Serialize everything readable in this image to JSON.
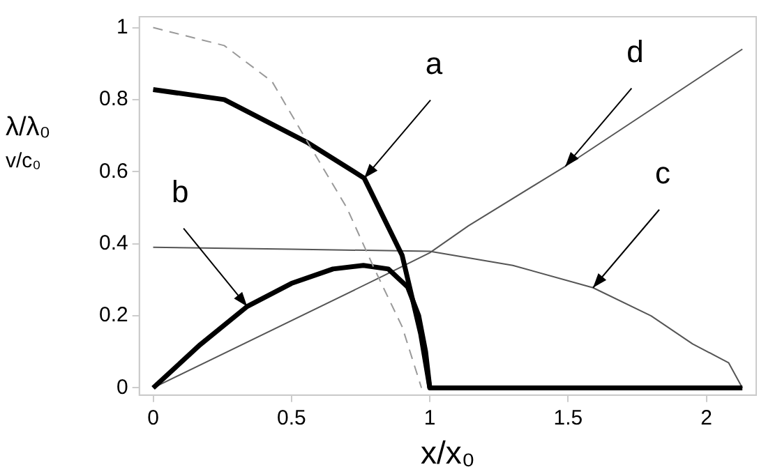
{
  "chart_data": {
    "type": "line",
    "xlabel": "x/x₀",
    "ylabel": "λ/λ₀\nv/c₀",
    "xlim": [
      -0.05,
      2.18
    ],
    "ylim": [
      -0.02,
      1.03
    ],
    "xticks": [
      0,
      0.5,
      1,
      1.5,
      2
    ],
    "yticks": [
      0,
      0.2,
      0.4,
      0.6,
      0.8,
      1
    ],
    "grid": false,
    "legend": false,
    "marker": "none",
    "series": [
      {
        "color": "#999999",
        "line_style": "dashed",
        "x": [
          0,
          0.257,
          0.43,
          0.56,
          0.7,
          0.8,
          0.9,
          0.97
        ],
        "values": [
          1,
          0.95,
          0.85,
          0.68,
          0.5,
          0.33,
          0.17,
          0
        ]
      },
      {
        "color": "#000000",
        "line_style": "solid",
        "x": [
          0,
          0.257,
          0.56,
          0.763,
          0.9,
          0.967,
          1,
          1,
          2.13
        ],
        "values": [
          0.828,
          0.8,
          0.68,
          0.582,
          0.368,
          0.15,
          0,
          0,
          0
        ]
      },
      {
        "color": "#000000",
        "line_style": "solid",
        "x": [
          0,
          0.17,
          0.34,
          0.5,
          0.65,
          0.76,
          0.85,
          0.92,
          0.96,
          0.985,
          1
        ],
        "values": [
          0,
          0.12,
          0.226,
          0.29,
          0.33,
          0.34,
          0.33,
          0.28,
          0.2,
          0.1,
          0
        ]
      },
      {
        "color": "#555555",
        "line_style": "solid",
        "x": [
          0,
          0.5,
          1,
          1.3,
          1.59,
          1.8,
          1.95,
          2.08,
          2.13
        ],
        "values": [
          0.39,
          0.385,
          0.379,
          0.34,
          0.278,
          0.2,
          0.122,
          0.07,
          0
        ]
      },
      {
        "color": "#555555",
        "line_style": "solid",
        "x": [
          0,
          0.83,
          1,
          1.14,
          1.49,
          2.13
        ],
        "values": [
          0,
          0.31,
          0.375,
          0.45,
          0.615,
          0.94
        ]
      }
    ],
    "annotations": [
      {
        "text": "a",
        "x": 0.763,
        "y": 0.582
      },
      {
        "text": "b",
        "x": 0.34,
        "y": 0.226
      },
      {
        "text": "c",
        "x": 1.59,
        "y": 0.278
      },
      {
        "text": "d",
        "x": 1.49,
        "y": 0.615
      }
    ]
  }
}
